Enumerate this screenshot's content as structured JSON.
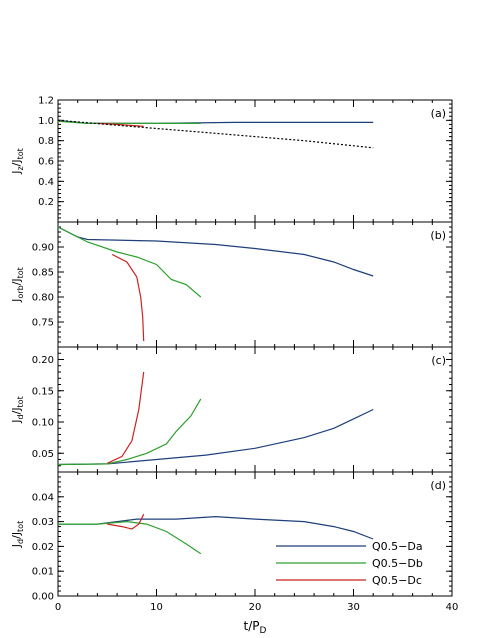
{
  "chart_data": {
    "type": "line",
    "xlabel": "t/P_D",
    "xlim": [
      0,
      40
    ],
    "xticks": [
      "0",
      "10",
      "20",
      "30",
      "40"
    ],
    "xticks_values": [
      0,
      10,
      20,
      30,
      40
    ],
    "legend": {
      "placement": "bottom-right of panel (d)",
      "entries": [
        {
          "label": "Q0.5−Da",
          "color": "#1f3f7a"
        },
        {
          "label": "Q0.5−Db",
          "color": "#2ea02e"
        },
        {
          "label": "Q0.5−Dc",
          "color": "#cc2222"
        }
      ]
    },
    "panels": [
      {
        "id": "a",
        "tag": "(a)",
        "ylabel_main": "J",
        "ylabel_sub": "z",
        "ylabel_den": "J",
        "ylabel_den_sub": "tot",
        "ylim": [
          0,
          1.2
        ],
        "yticks": [
          0.2,
          0.4,
          0.6,
          0.8,
          1.0,
          1.2
        ],
        "ytick_labels": [
          "0.2",
          "0.4",
          "0.6",
          "0.8",
          "1.0",
          "1.2"
        ],
        "series": [
          {
            "name": "Q0.5−Da",
            "color": "#1f3f7a",
            "style": "solid",
            "points": [
              [
                0,
                1.0
              ],
              [
                3,
                0.97
              ],
              [
                10,
                0.97
              ],
              [
                18,
                0.98
              ],
              [
                25,
                0.98
              ],
              [
                32,
                0.98
              ]
            ]
          },
          {
            "name": "Q0.5−Db",
            "color": "#2ea02e",
            "style": "solid",
            "points": [
              [
                0,
                0.99
              ],
              [
                3,
                0.97
              ],
              [
                8,
                0.97
              ],
              [
                14.5,
                0.97
              ]
            ]
          },
          {
            "name": "Q0.5−Dc",
            "color": "#cc2222",
            "style": "solid",
            "points": [
              [
                4,
                0.97
              ],
              [
                6,
                0.96
              ],
              [
                8.7,
                0.94
              ]
            ]
          },
          {
            "name": "",
            "color": "#000000",
            "style": "dotted",
            "points": [
              [
                0,
                1.0
              ],
              [
                5,
                0.96
              ],
              [
                10,
                0.92
              ],
              [
                15,
                0.88
              ],
              [
                20,
                0.84
              ],
              [
                25,
                0.8
              ],
              [
                32,
                0.73
              ]
            ]
          }
        ]
      },
      {
        "id": "b",
        "tag": "(b)",
        "ylabel_main": "J",
        "ylabel_sub": "orb",
        "ylabel_den": "J",
        "ylabel_den_sub": "tot",
        "ylim": [
          0.7,
          0.95
        ],
        "yticks": [
          0.75,
          0.8,
          0.85,
          0.9
        ],
        "ytick_labels": [
          "0.75",
          "0.80",
          "0.85",
          "0.90"
        ],
        "series": [
          {
            "name": "Q0.5−Da",
            "color": "#1f3f7a",
            "style": "solid",
            "points": [
              [
                0,
                0.94
              ],
              [
                2,
                0.92
              ],
              [
                3,
                0.915
              ],
              [
                10,
                0.912
              ],
              [
                16,
                0.905
              ],
              [
                20,
                0.897
              ],
              [
                25,
                0.885
              ],
              [
                28,
                0.87
              ],
              [
                30,
                0.855
              ],
              [
                32,
                0.842
              ]
            ]
          },
          {
            "name": "Q0.5−Db",
            "color": "#2ea02e",
            "style": "solid",
            "points": [
              [
                0,
                0.94
              ],
              [
                3,
                0.91
              ],
              [
                6,
                0.89
              ],
              [
                8,
                0.88
              ],
              [
                10,
                0.865
              ],
              [
                11.5,
                0.835
              ],
              [
                13,
                0.825
              ],
              [
                14.5,
                0.8
              ]
            ]
          },
          {
            "name": "Q0.5−Dc",
            "color": "#cc2222",
            "style": "solid",
            "points": [
              [
                5.5,
                0.885
              ],
              [
                7,
                0.87
              ],
              [
                8,
                0.84
              ],
              [
                8.4,
                0.8
              ],
              [
                8.6,
                0.76
              ],
              [
                8.7,
                0.712
              ]
            ]
          }
        ]
      },
      {
        "id": "c",
        "tag": "(c)",
        "ylabel_main": "J",
        "ylabel_sub": "d",
        "ylabel_den": "J",
        "ylabel_den_sub": "tot",
        "ylim": [
          0.02,
          0.22
        ],
        "yticks": [
          0.05,
          0.1,
          0.15,
          0.2
        ],
        "ytick_labels": [
          "0.05",
          "0.10",
          "0.15",
          "0.20"
        ],
        "series": [
          {
            "name": "Q0.5−Da",
            "color": "#1f3f7a",
            "style": "solid",
            "points": [
              [
                0,
                0.032
              ],
              [
                5,
                0.033
              ],
              [
                10,
                0.04
              ],
              [
                15,
                0.047
              ],
              [
                20,
                0.058
              ],
              [
                25,
                0.075
              ],
              [
                28,
                0.09
              ],
              [
                30,
                0.105
              ],
              [
                32,
                0.12
              ]
            ]
          },
          {
            "name": "Q0.5−Db",
            "color": "#2ea02e",
            "style": "solid",
            "points": [
              [
                0,
                0.032
              ],
              [
                5,
                0.033
              ],
              [
                7,
                0.04
              ],
              [
                9,
                0.05
              ],
              [
                11,
                0.065
              ],
              [
                12,
                0.085
              ],
              [
                13.5,
                0.11
              ],
              [
                14.5,
                0.137
              ]
            ]
          },
          {
            "name": "Q0.5−Dc",
            "color": "#cc2222",
            "style": "solid",
            "points": [
              [
                5,
                0.034
              ],
              [
                6.5,
                0.045
              ],
              [
                7.5,
                0.07
              ],
              [
                8.2,
                0.12
              ],
              [
                8.7,
                0.18
              ]
            ]
          }
        ]
      },
      {
        "id": "d",
        "tag": "(d)",
        "ylabel_main": "J",
        "ylabel_sub": "d",
        "ylabel_den": "J",
        "ylabel_den_sub": "tot",
        "ylim": [
          0.0,
          0.05
        ],
        "yticks": [
          0.0,
          0.01,
          0.02,
          0.03,
          0.04
        ],
        "ytick_labels": [
          "0.00",
          "0.01",
          "0.02",
          "0.03",
          "0.04"
        ],
        "series": [
          {
            "name": "Q0.5−Da",
            "color": "#1f3f7a",
            "style": "solid",
            "points": [
              [
                0,
                0.029
              ],
              [
                4,
                0.029
              ],
              [
                8,
                0.031
              ],
              [
                12,
                0.031
              ],
              [
                16,
                0.032
              ],
              [
                20,
                0.031
              ],
              [
                25,
                0.03
              ],
              [
                28,
                0.028
              ],
              [
                30,
                0.026
              ],
              [
                32,
                0.023
              ]
            ]
          },
          {
            "name": "Q0.5−Db",
            "color": "#2ea02e",
            "style": "solid",
            "points": [
              [
                0,
                0.029
              ],
              [
                4,
                0.029
              ],
              [
                7,
                0.03
              ],
              [
                9,
                0.029
              ],
              [
                11,
                0.026
              ],
              [
                13,
                0.021
              ],
              [
                14.5,
                0.017
              ]
            ]
          },
          {
            "name": "Q0.5−Dc",
            "color": "#cc2222",
            "style": "solid",
            "points": [
              [
                5,
                0.029
              ],
              [
                6.5,
                0.028
              ],
              [
                7.5,
                0.027
              ],
              [
                8.2,
                0.029
              ],
              [
                8.7,
                0.033
              ]
            ]
          }
        ]
      }
    ]
  }
}
